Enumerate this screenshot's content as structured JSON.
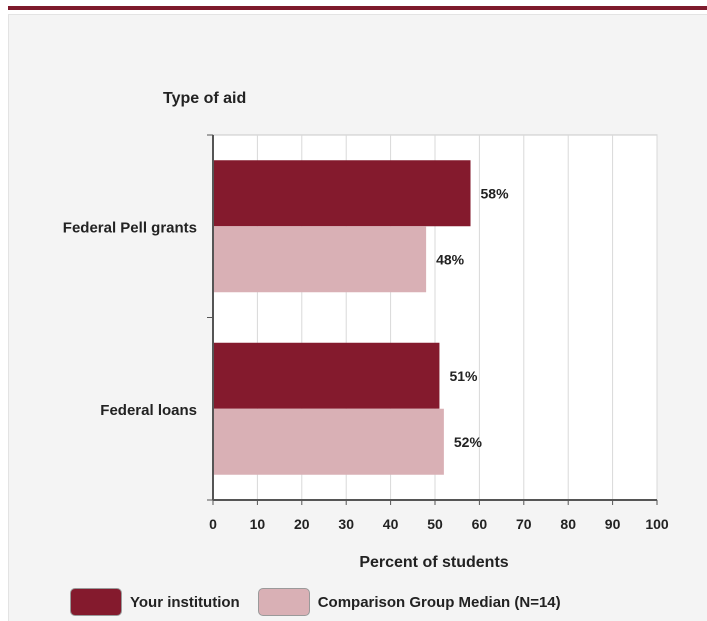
{
  "chart_data": {
    "type": "bar",
    "orientation": "horizontal",
    "title": "Type of aid",
    "xlabel": "Percent of students",
    "categories": [
      "Federal Pell grants",
      "Federal loans"
    ],
    "series": [
      {
        "name": "Your institution",
        "color": "#841a2d",
        "values": [
          58,
          51
        ]
      },
      {
        "name": "Comparison Group Median (N=14)",
        "color": "#d9b0b5",
        "values": [
          48,
          52
        ]
      }
    ],
    "data_labels": [
      [
        "58%",
        "51%"
      ],
      [
        "48%",
        "52%"
      ]
    ],
    "xlim": [
      0,
      100
    ],
    "xticks": [
      0,
      10,
      20,
      30,
      40,
      50,
      60,
      70,
      80,
      90,
      100
    ],
    "grid": true,
    "legend": "bottom"
  }
}
